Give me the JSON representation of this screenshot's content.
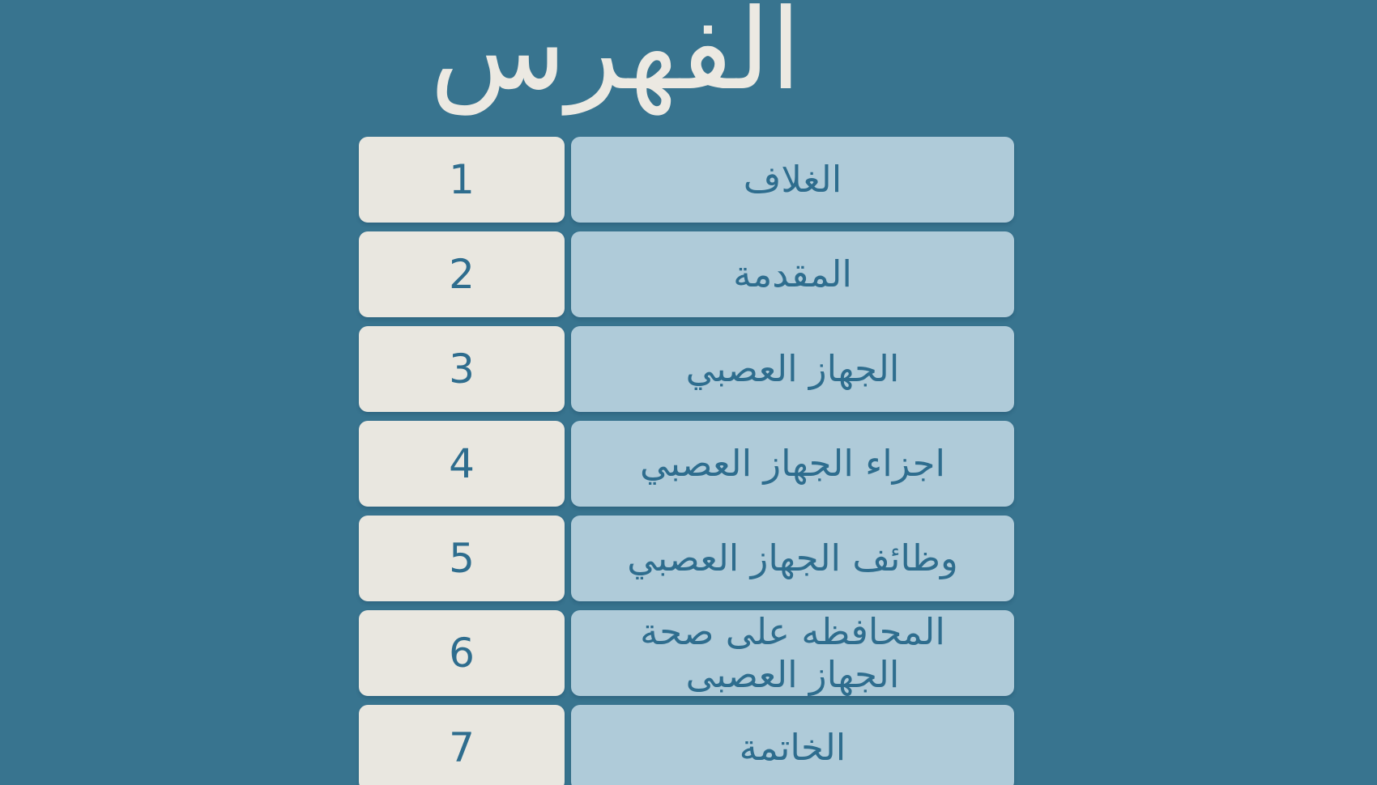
{
  "theme": {
    "background-color": "#38748F",
    "number-box-color": "#E9E7E0",
    "label-box-color": "#AFCBD9",
    "text-color": "#2E6D8E",
    "title-color": "#ECE9E2"
  },
  "page": {
    "title": "الفهرس"
  },
  "toc": {
    "rows": [
      {
        "number": "1",
        "label": "الغلاف"
      },
      {
        "number": "2",
        "label": "المقدمة"
      },
      {
        "number": "3",
        "label": "الجهاز العصبي"
      },
      {
        "number": "4",
        "label": "اجزاء الجهاز العصبي"
      },
      {
        "number": "5",
        "label": "وظائف الجهاز العصبي"
      },
      {
        "number": "6",
        "label": "المحافظه على صحة\nالجهاز العصبى"
      },
      {
        "number": "7",
        "label": "الخاتمة"
      }
    ]
  }
}
